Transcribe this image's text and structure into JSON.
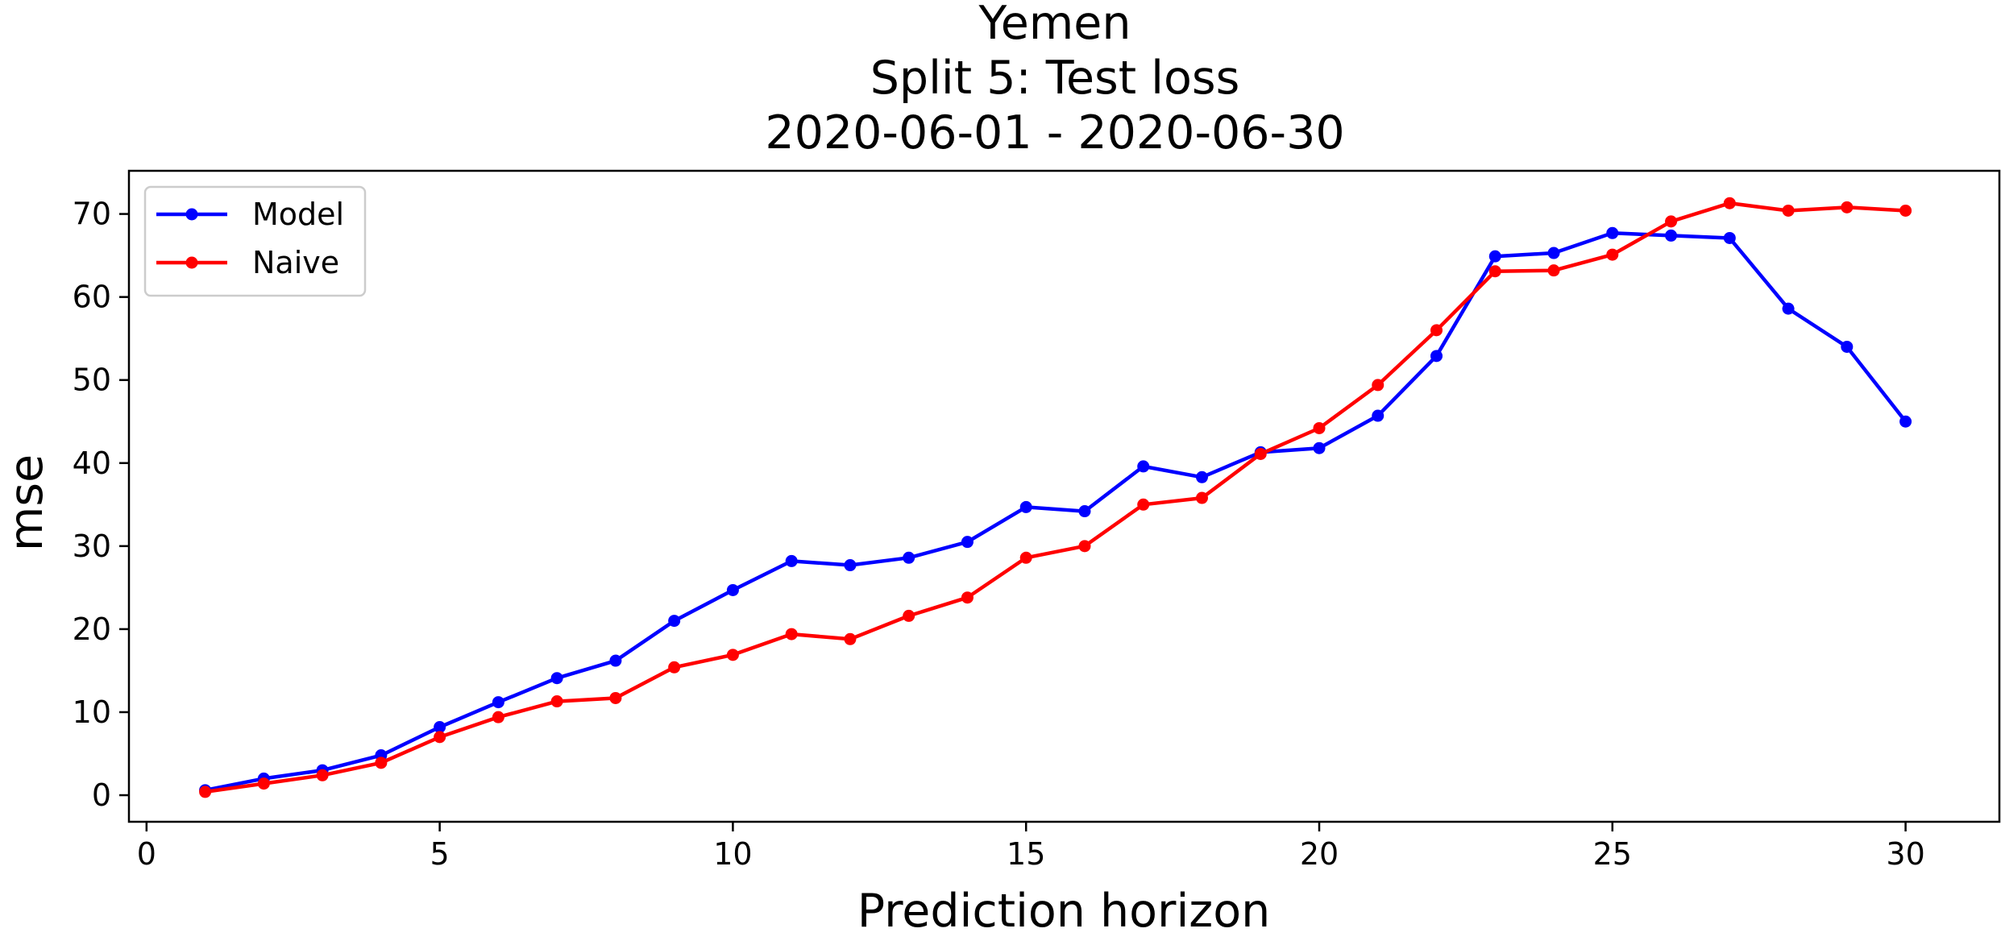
{
  "chart_data": {
    "type": "line",
    "title": [
      "Yemen",
      "Split 5: Test loss",
      "2020-06-01 - 2020-06-30"
    ],
    "xlabel": "Prediction horizon",
    "ylabel": "mse",
    "xlim": [
      -0.3,
      31.6
    ],
    "ylim": [
      -3.2,
      75.2
    ],
    "xticks": [
      0,
      5,
      10,
      15,
      20,
      25,
      30
    ],
    "yticks": [
      0,
      10,
      20,
      30,
      40,
      50,
      60,
      70
    ],
    "grid": false,
    "legend_position": "upper left",
    "x": [
      1,
      2,
      3,
      4,
      5,
      6,
      7,
      8,
      9,
      10,
      11,
      12,
      13,
      14,
      15,
      16,
      17,
      18,
      19,
      20,
      21,
      22,
      23,
      24,
      25,
      26,
      27,
      28,
      29,
      30
    ],
    "series": [
      {
        "name": "Model",
        "color": "#0000ff",
        "values": [
          0.6,
          2.0,
          3.0,
          4.8,
          8.2,
          11.2,
          14.1,
          16.2,
          21.0,
          24.7,
          28.2,
          27.7,
          28.6,
          30.5,
          34.7,
          34.2,
          39.6,
          38.3,
          41.3,
          41.8,
          45.7,
          52.9,
          64.9,
          65.3,
          67.7,
          67.4,
          67.1,
          58.6,
          54.0,
          45.0
        ]
      },
      {
        "name": "Naive",
        "color": "#ff0000",
        "values": [
          0.4,
          1.4,
          2.4,
          3.9,
          7.0,
          9.4,
          11.3,
          11.7,
          15.4,
          16.9,
          19.4,
          18.8,
          21.6,
          23.8,
          28.6,
          30.0,
          35.0,
          35.8,
          41.1,
          44.2,
          49.4,
          56.0,
          63.1,
          63.2,
          65.1,
          69.1,
          71.3,
          70.4,
          70.8,
          70.4
        ]
      }
    ]
  }
}
